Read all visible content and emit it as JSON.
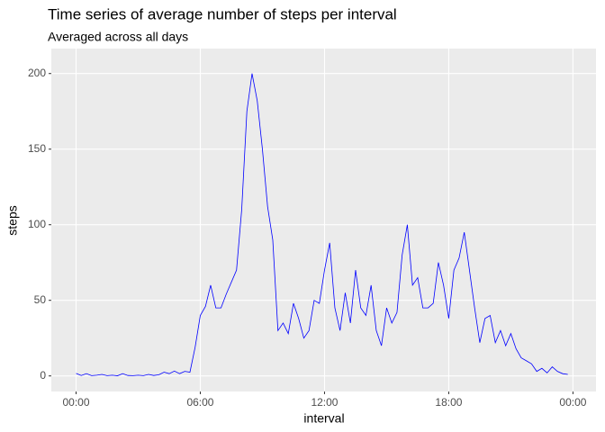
{
  "chart_data": {
    "type": "line",
    "title": "Time series of average number of steps per interval",
    "subtitle": "Averaged across all days",
    "x_label": "interval",
    "y_label": "steps",
    "x": [
      0,
      15,
      30,
      45,
      60,
      75,
      90,
      105,
      120,
      135,
      150,
      165,
      180,
      195,
      210,
      225,
      240,
      255,
      270,
      285,
      300,
      315,
      330,
      345,
      360,
      375,
      390,
      405,
      420,
      435,
      450,
      465,
      480,
      495,
      510,
      525,
      540,
      555,
      570,
      585,
      600,
      615,
      630,
      645,
      660,
      675,
      690,
      705,
      720,
      735,
      750,
      765,
      780,
      795,
      810,
      825,
      840,
      855,
      870,
      885,
      900,
      915,
      930,
      945,
      960,
      975,
      990,
      1005,
      1020,
      1035,
      1050,
      1065,
      1080,
      1095,
      1110,
      1125,
      1140,
      1155,
      1170,
      1185,
      1200,
      1215,
      1230,
      1245,
      1260,
      1275,
      1290,
      1305,
      1320,
      1335,
      1350,
      1365,
      1380,
      1395,
      1410,
      1425
    ],
    "series": [
      {
        "name": "steps",
        "color": "#0000ff",
        "values": [
          1.7,
          0.3,
          1.5,
          0.2,
          0.5,
          1,
          0.2,
          0.5,
          0.1,
          1.5,
          0.3,
          0.2,
          0.5,
          0.2,
          1,
          0.3,
          0.8,
          2.5,
          1.5,
          3.2,
          1.5,
          3,
          2.5,
          19,
          40,
          46,
          60,
          45,
          45,
          54,
          62,
          70,
          110,
          175,
          200,
          182,
          150,
          112,
          90,
          30,
          35,
          28,
          48,
          38,
          25,
          30,
          50,
          48,
          70,
          88,
          45,
          30,
          55,
          35,
          70,
          45,
          40,
          60,
          30,
          20,
          45,
          35,
          42,
          80,
          100,
          60,
          65,
          45,
          45,
          48,
          75,
          60,
          38,
          70,
          78,
          95,
          70,
          45,
          22,
          38,
          40,
          22,
          30,
          20,
          28,
          18,
          12,
          10,
          8,
          3,
          5,
          2,
          6,
          3,
          1.5,
          1
        ]
      }
    ],
    "xlim": [
      -71.75,
      1506.75
    ],
    "xticks": [
      {
        "value": 0,
        "label": "00:00"
      },
      {
        "value": 360,
        "label": "06:00"
      },
      {
        "value": 720,
        "label": "12:00"
      },
      {
        "value": 1080,
        "label": "18:00"
      },
      {
        "value": 1440,
        "label": "00:00"
      }
    ],
    "ylim": [
      -10.3,
      216.5
    ],
    "yticks": [
      0,
      50,
      100,
      150,
      200
    ],
    "grid": true
  }
}
